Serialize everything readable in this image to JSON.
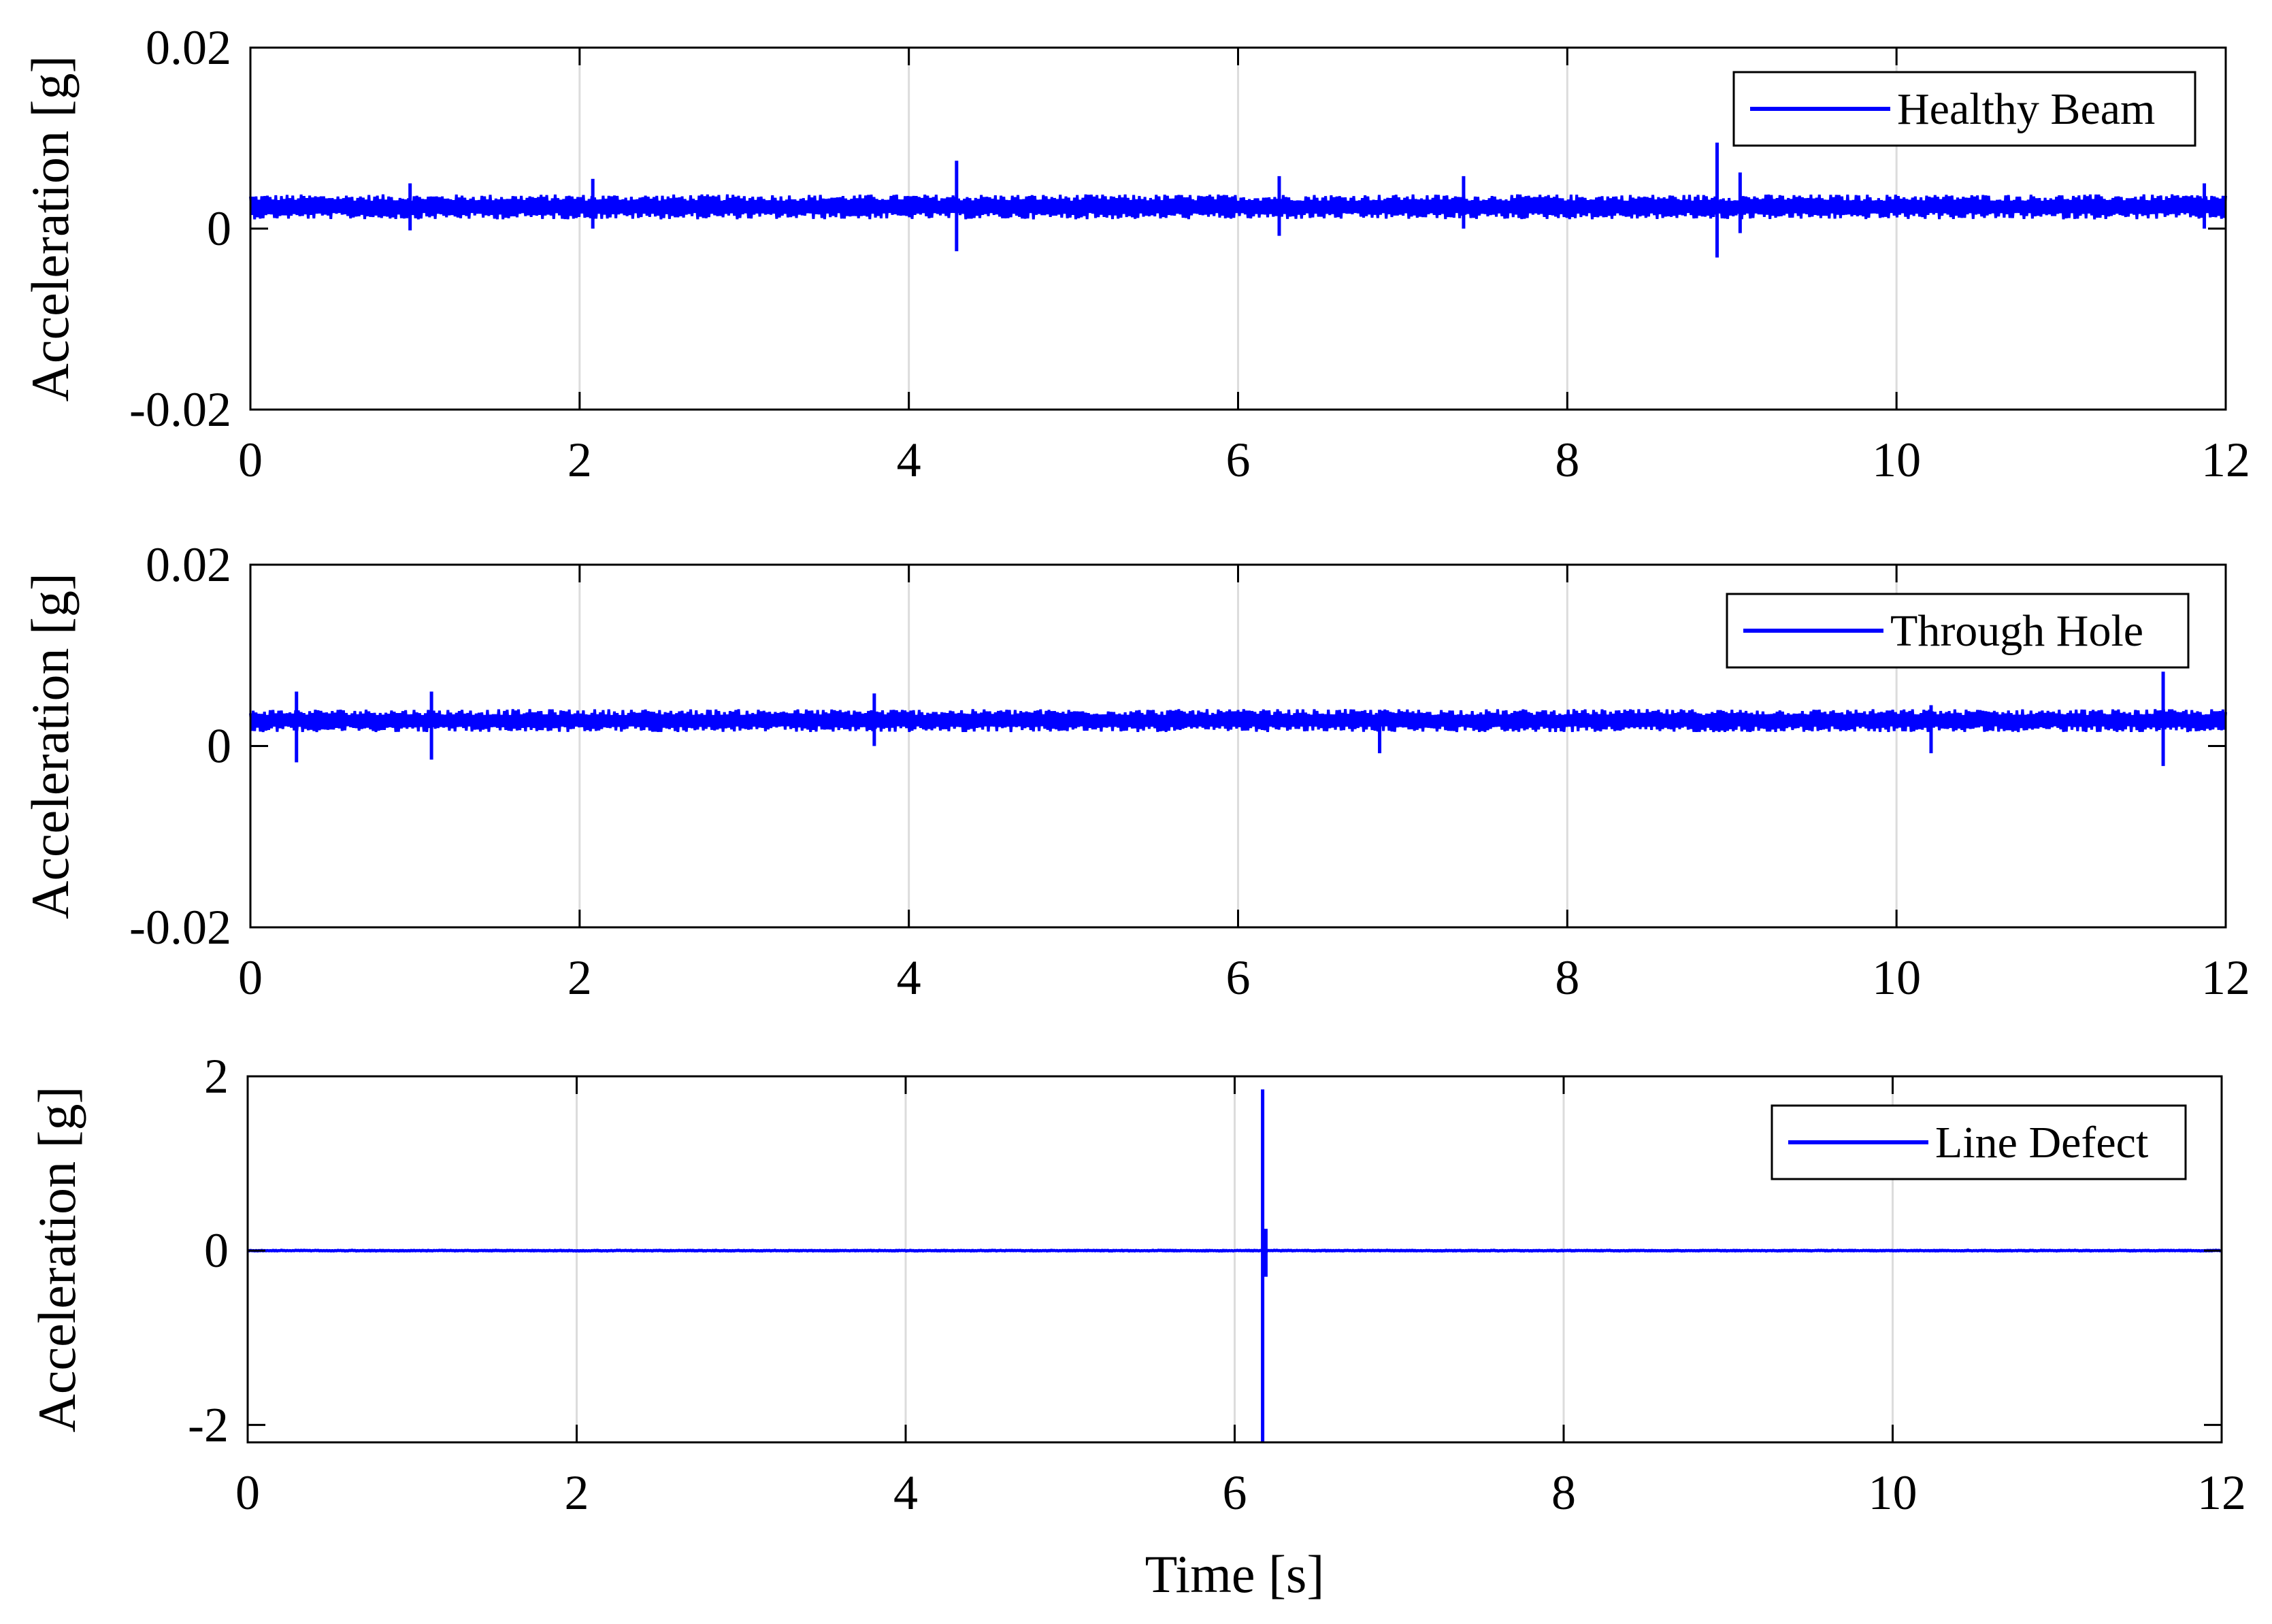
{
  "figure": {
    "line_color": "#0000ff",
    "grid_color": "#dcdcdc",
    "axis_color": "#000000"
  },
  "chart_data": [
    {
      "type": "line",
      "title": "",
      "xlabel": "",
      "ylabel": "Acceleration [g]",
      "xlim": [
        0,
        12
      ],
      "ylim": [
        -0.02,
        0.02
      ],
      "xticks": [
        0,
        2,
        4,
        6,
        8,
        10,
        12
      ],
      "xtick_labels": [
        "0",
        "2",
        "4",
        "6",
        "8",
        "10",
        "12"
      ],
      "yticks": [
        -0.02,
        0,
        0.02
      ],
      "ytick_labels": [
        "-0.02",
        "0",
        "0.02"
      ],
      "grid": "vertical",
      "legend": {
        "position": "top-right",
        "entries": [
          "Healthy Beam"
        ]
      },
      "series": [
        {
          "name": "Healthy Beam",
          "color": "#0000ff",
          "baseline": 0.0024,
          "band_halfwidth": 0.0012,
          "spikes": [
            {
              "x": 0.97,
              "ymin": -0.0002,
              "ymax": 0.005
            },
            {
              "x": 2.08,
              "ymin": 0.0,
              "ymax": 0.0055
            },
            {
              "x": 4.29,
              "ymin": -0.0025,
              "ymax": 0.0075
            },
            {
              "x": 6.25,
              "ymin": -0.0008,
              "ymax": 0.0058
            },
            {
              "x": 7.37,
              "ymin": 0.0,
              "ymax": 0.0058
            },
            {
              "x": 8.91,
              "ymin": -0.0032,
              "ymax": 0.0095
            },
            {
              "x": 9.05,
              "ymin": -0.0005,
              "ymax": 0.0062
            },
            {
              "x": 11.87,
              "ymin": 0.0,
              "ymax": 0.005
            }
          ]
        }
      ]
    },
    {
      "type": "line",
      "title": "",
      "xlabel": "",
      "ylabel": "Acceleration [g]",
      "xlim": [
        0,
        12
      ],
      "ylim": [
        -0.02,
        0.02
      ],
      "xticks": [
        0,
        2,
        4,
        6,
        8,
        10,
        12
      ],
      "xtick_labels": [
        "0",
        "2",
        "4",
        "6",
        "8",
        "10",
        "12"
      ],
      "yticks": [
        -0.02,
        0,
        0.02
      ],
      "ytick_labels": [
        "-0.02",
        "0",
        "0.02"
      ],
      "grid": "vertical",
      "legend": {
        "position": "top-right",
        "entries": [
          "Through Hole"
        ]
      },
      "series": [
        {
          "name": "Through Hole",
          "color": "#0000ff",
          "baseline": 0.0028,
          "band_halfwidth": 0.0011,
          "spikes": [
            {
              "x": 0.28,
              "ymin": -0.0018,
              "ymax": 0.006
            },
            {
              "x": 1.1,
              "ymin": -0.0015,
              "ymax": 0.006
            },
            {
              "x": 3.79,
              "ymin": 0.0,
              "ymax": 0.0058
            },
            {
              "x": 6.86,
              "ymin": -0.0008,
              "ymax": 0.004
            },
            {
              "x": 10.21,
              "ymin": -0.0008,
              "ymax": 0.0045
            },
            {
              "x": 11.62,
              "ymin": -0.0022,
              "ymax": 0.0082
            }
          ]
        }
      ]
    },
    {
      "type": "line",
      "title": "",
      "xlabel": "Time [s]",
      "ylabel": "Acceleration [g]",
      "xlim": [
        0,
        12
      ],
      "ylim": [
        -2.2,
        2
      ],
      "xticks": [
        0,
        2,
        4,
        6,
        8,
        10,
        12
      ],
      "xtick_labels": [
        "0",
        "2",
        "4",
        "6",
        "8",
        "10",
        "12"
      ],
      "yticks": [
        -2,
        0,
        2
      ],
      "ytick_labels": [
        "-2",
        "0",
        "2"
      ],
      "grid": "vertical",
      "legend": {
        "position": "top-right",
        "entries": [
          "Line Defect"
        ]
      },
      "series": [
        {
          "name": "Line Defect",
          "color": "#0000ff",
          "baseline": 0,
          "band_halfwidth": 0.01,
          "spikes": [
            {
              "x": 6.17,
              "ymin": -2.2,
              "ymax": 1.85
            },
            {
              "x": 6.19,
              "ymin": -0.3,
              "ymax": 0.25
            }
          ]
        }
      ]
    }
  ]
}
